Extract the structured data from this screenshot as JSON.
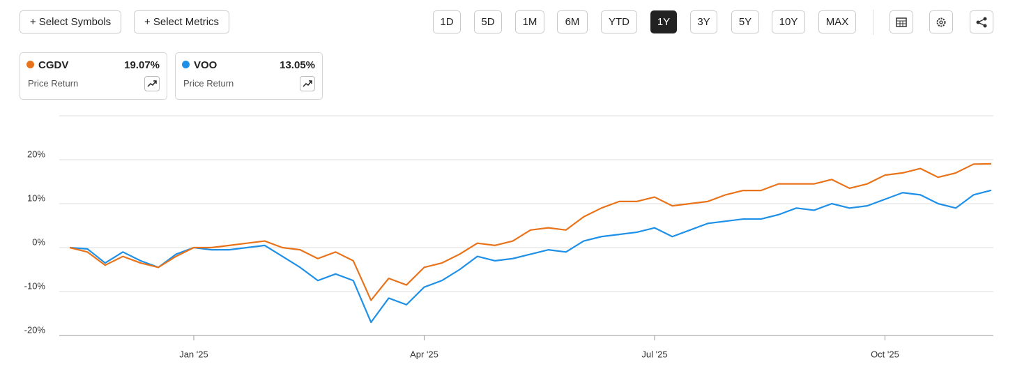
{
  "toolbar": {
    "buttons": [
      "+ Select Symbols",
      "+ Select Metrics"
    ],
    "ranges": [
      "1D",
      "5D",
      "1M",
      "6M",
      "YTD",
      "1Y",
      "3Y",
      "5Y",
      "10Y",
      "MAX"
    ],
    "active_range": "1Y"
  },
  "chart_data": {
    "type": "line",
    "categories": [
      null,
      null,
      null,
      null,
      null,
      null,
      null,
      "Jan '25",
      null,
      null,
      null,
      null,
      null,
      null,
      null,
      null,
      null,
      null,
      null,
      null,
      "Apr '25",
      null,
      null,
      null,
      null,
      null,
      null,
      null,
      null,
      null,
      null,
      null,
      null,
      "Jul '25",
      null,
      null,
      null,
      null,
      null,
      null,
      null,
      null,
      null,
      null,
      null,
      null,
      "Oct '25",
      null,
      null,
      null,
      null,
      null,
      null
    ],
    "series": [
      {
        "name": "CGDV",
        "color": "#e8731a",
        "metric": "Price Return",
        "total_label": "19.07%",
        "values": [
          0,
          -1,
          -4,
          -2,
          -3.5,
          -4.5,
          -2,
          0,
          0,
          0.5,
          1,
          1.5,
          0,
          -0.5,
          -2.5,
          -1,
          -3,
          -12,
          -7,
          -8.5,
          -4.5,
          -3.5,
          -1.5,
          1,
          0.5,
          1.5,
          4,
          4.5,
          4,
          7,
          9,
          10.5,
          10.5,
          11.5,
          9.5,
          10,
          10.5,
          12,
          13,
          13,
          14.5,
          14.5,
          14.5,
          15.5,
          13.5,
          14.5,
          16.5,
          17,
          18,
          16,
          17,
          19,
          19.07
        ]
      },
      {
        "name": "VOO",
        "color": "#1e90e8",
        "metric": "Price Return",
        "total_label": "13.05%",
        "values": [
          0,
          -0.3,
          -3.5,
          -1,
          -3,
          -4.5,
          -1.5,
          0,
          -0.5,
          -0.5,
          0,
          0.5,
          -2,
          -4.5,
          -7.5,
          -6,
          -7.5,
          -17,
          -11.5,
          -13,
          -9,
          -7.5,
          -5,
          -2,
          -3,
          -2.5,
          -1.5,
          -0.5,
          -1,
          1.5,
          2.5,
          3,
          3.5,
          4.5,
          2.5,
          4,
          5.5,
          6,
          6.5,
          6.5,
          7.5,
          9,
          8.5,
          10,
          9,
          9.5,
          11,
          12.5,
          12,
          10,
          9,
          12,
          13.05
        ]
      }
    ],
    "ylim": [
      -20,
      30
    ],
    "yticks": [
      {
        "value": 20,
        "label": "20%"
      },
      {
        "value": 10,
        "label": "10%"
      },
      {
        "value": 0,
        "label": "0%"
      },
      {
        "value": -10,
        "label": "-10%"
      },
      {
        "value": -20,
        "label": "-20%"
      }
    ],
    "grid": true
  }
}
